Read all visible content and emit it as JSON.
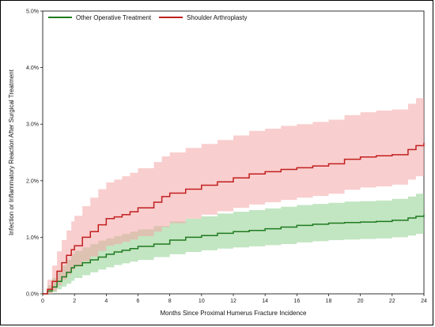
{
  "chart_data": {
    "type": "line",
    "xlabel": "Months Since Proximal Humerus Fracture Incidence",
    "ylabel": "Infection or Inflammatory Reaction After Surgical Treatment",
    "xlim": [
      0,
      24
    ],
    "ylim": [
      0,
      5
    ],
    "xticks": [
      "0",
      "2",
      "4",
      "6",
      "8",
      "10",
      "12",
      "14",
      "16",
      "18",
      "20",
      "22",
      "24"
    ],
    "yticks": [
      "0.0%",
      "1.0%",
      "2.0%",
      "3.0%",
      "4.0%",
      "5.0%"
    ],
    "legend_position": "top-left",
    "grid": false,
    "series": [
      {
        "name": "Other Operative Treatment",
        "color": "#1e7b1e",
        "band_color": "#8fd08f",
        "x": [
          0,
          0.3,
          0.6,
          0.9,
          1.2,
          1.5,
          1.8,
          2.0,
          2.5,
          3.0,
          3.5,
          4.0,
          4.5,
          5.0,
          5.5,
          6.0,
          7.0,
          8.0,
          9.0,
          10.0,
          11.0,
          12.0,
          13.0,
          14.0,
          15.0,
          16.0,
          17.0,
          18.0,
          19.0,
          20.0,
          21.0,
          22.0,
          23.0,
          23.5,
          24.0
        ],
        "y": [
          0.0,
          0.05,
          0.12,
          0.22,
          0.3,
          0.38,
          0.46,
          0.5,
          0.55,
          0.6,
          0.65,
          0.7,
          0.74,
          0.77,
          0.8,
          0.84,
          0.88,
          0.95,
          1.0,
          1.03,
          1.07,
          1.1,
          1.12,
          1.15,
          1.18,
          1.21,
          1.23,
          1.25,
          1.26,
          1.27,
          1.28,
          1.3,
          1.34,
          1.37,
          1.4
        ],
        "lower": [
          0.0,
          0.0,
          0.03,
          0.08,
          0.13,
          0.18,
          0.23,
          0.28,
          0.33,
          0.38,
          0.43,
          0.47,
          0.51,
          0.54,
          0.57,
          0.6,
          0.65,
          0.7,
          0.74,
          0.77,
          0.8,
          0.82,
          0.84,
          0.86,
          0.88,
          0.91,
          0.93,
          0.95,
          0.96,
          0.97,
          0.98,
          1.0,
          1.03,
          1.06,
          1.08
        ],
        "upper": [
          0.0,
          0.15,
          0.28,
          0.4,
          0.5,
          0.6,
          0.7,
          0.76,
          0.82,
          0.88,
          0.94,
          0.98,
          1.02,
          1.06,
          1.1,
          1.14,
          1.2,
          1.28,
          1.33,
          1.37,
          1.42,
          1.45,
          1.48,
          1.51,
          1.54,
          1.57,
          1.59,
          1.61,
          1.63,
          1.64,
          1.65,
          1.68,
          1.72,
          1.77,
          1.82
        ]
      },
      {
        "name": "Shoulder Arthroplasty",
        "color": "#c21f1f",
        "band_color": "#f4a5a5",
        "x": [
          0,
          0.3,
          0.6,
          0.9,
          1.2,
          1.5,
          1.8,
          2.0,
          2.5,
          3.0,
          3.5,
          4.0,
          4.5,
          5.0,
          5.5,
          6.0,
          7.0,
          7.5,
          8.0,
          9.0,
          10.0,
          11.0,
          12.0,
          13.0,
          14.0,
          15.0,
          16.0,
          17.0,
          18.0,
          19.0,
          20.0,
          21.0,
          22.0,
          23.0,
          23.5,
          24.0
        ],
        "y": [
          0.0,
          0.08,
          0.22,
          0.4,
          0.55,
          0.68,
          0.78,
          0.85,
          1.0,
          1.1,
          1.22,
          1.33,
          1.36,
          1.4,
          1.45,
          1.52,
          1.62,
          1.72,
          1.78,
          1.85,
          1.92,
          1.98,
          2.05,
          2.12,
          2.16,
          2.2,
          2.23,
          2.26,
          2.3,
          2.38,
          2.42,
          2.44,
          2.46,
          2.55,
          2.62,
          2.67
        ],
        "lower": [
          0.0,
          0.0,
          0.05,
          0.15,
          0.25,
          0.34,
          0.42,
          0.48,
          0.58,
          0.66,
          0.76,
          0.85,
          0.88,
          0.92,
          0.96,
          1.02,
          1.1,
          1.18,
          1.25,
          1.33,
          1.4,
          1.46,
          1.52,
          1.58,
          1.62,
          1.66,
          1.7,
          1.73,
          1.77,
          1.84,
          1.88,
          1.9,
          1.93,
          2.02,
          2.08,
          2.12
        ],
        "upper": [
          0.0,
          0.25,
          0.5,
          0.75,
          0.95,
          1.12,
          1.28,
          1.38,
          1.55,
          1.7,
          1.85,
          1.97,
          2.02,
          2.08,
          2.14,
          2.22,
          2.33,
          2.43,
          2.5,
          2.58,
          2.65,
          2.72,
          2.8,
          2.88,
          2.92,
          2.97,
          3.0,
          3.04,
          3.08,
          3.16,
          3.21,
          3.24,
          3.26,
          3.36,
          3.46,
          3.55
        ]
      }
    ]
  }
}
